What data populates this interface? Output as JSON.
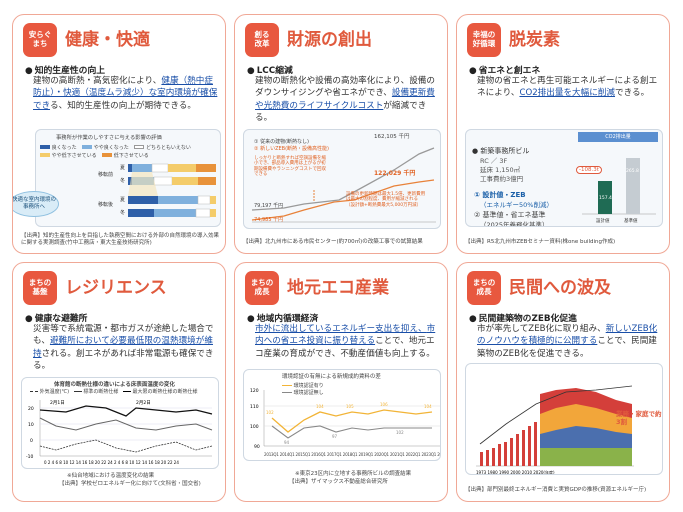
{
  "c1": {
    "badge": "安らぐ\nまち",
    "title": "健康・快適",
    "sub": "知的生産性の向上",
    "body_a": "建物の高断熱・高気密化により、",
    "body_b": "健康（熱中症防止）・快適（温度ムラ減少）な室内環境が確保でき",
    "body_c": "る、知的生産性の向上が期待できる。",
    "chart_title": "事務所が作業のしやすさに与える影響の評価",
    "legend": [
      "良くなった",
      "やや良くなった",
      "どちらともいえない",
      "やや低下させている",
      "低下させている"
    ],
    "rows": [
      "夏",
      "冬",
      "夏",
      "冬"
    ],
    "groups": [
      "移転前",
      "移転後"
    ],
    "callout": "快適な室内環境の事務所へ",
    "source": "【出典】知的生産性向上を目指した執務空間における外部の自然環境の導入効果に関する実測調査(竹中工務店・東大生産技術研究所)"
  },
  "c2": {
    "badge": "創る\n改革",
    "title": "財源の創出",
    "sub": "LCC縮減",
    "body_a": "建物の断熱化や設備の高効率化により、",
    "body_b": "設備のダウンサイジングや省エネができ、",
    "body_c": "設備更新費や光熱費のライフサイクルコスト",
    "body_d": "が縮減できる。",
    "legend1": "① 従来の建物(断熱なし)",
    "legend2": "② 新しいZEB(断熱・設備高性能)",
    "v1": "162,105 千円",
    "v2": "122,029 千円",
    "v3": "79,197 千円",
    "v4": "74,985 千円",
    "note1": "しっかりと断熱すれば空調設備を縮小でき、部品導入費用は上がるが初期設備費やランニングコストで回収できる",
    "note2": "設備の更新時期は最大1.5倍、更新費用は最大の割程度、費用が縮減される（設計額+断熱費最大5,000万円減）",
    "source": "【出典】北九州市にある市民センター(約700㎡)の改築工事での試算結果"
  },
  "c3": {
    "badge": "幸福の\n好循環",
    "title": "脱炭素",
    "sub": "省エネと創エネ",
    "body_a": "建物の省エネと再生可能エネルギーによる創エネにより、",
    "body_b": "CO2排出量を大幅に削減",
    "body_c": "できる。",
    "info_title": "新築事務所ビル",
    "info_lines": [
      "RC ／ 3F",
      "延床 1,150㎡",
      "工事費約3億円"
    ],
    "opt1": "① 設計値・ZEB",
    "opt1b": "（エネルギー50%削減）",
    "opt2": "② 基準値・省エネ基準",
    "opt2b": "（2025年義務化基準）",
    "chart_title": "CO2排出量",
    "bar_labels": [
      "設計値",
      "基準値"
    ],
    "bar_values": [
      157.4,
      265.8
    ],
    "diff": "-108.3t",
    "source": "【出典】R5北九州市ZEBセミナー資料(株one building作成)"
  },
  "c4": {
    "badge": "まちの\n基盤",
    "title": "レジリエンス",
    "sub": "健康な避難所",
    "body_a": "災害等で系統電源・都市ガスが途絶した場合でも、",
    "body_b": "避難所において必要最低限の温熱環境が維持",
    "body_c": "される。創エネがあれば非常電源も確保できる。",
    "chart_title": "体育館の断熱仕様の違いによる床表面温度の変化",
    "legend": [
      "外気温度(℃)",
      "標準の断熱仕様",
      "最大限の断熱仕様の断熱仕様"
    ],
    "note1": "※仙台地域における温度変化の結果",
    "source": "【出典】学校ゼロエネルギー化に向けて(文科省・国交省)"
  },
  "c5": {
    "badge": "まちの\n成長",
    "title": "地元エコ産業",
    "sub": "地域内循環経済",
    "body_a": "市外に流出しているエネルギー支出を抑え、",
    "body_b": "市内への省エネ投資に振り替える",
    "body_c": "ことで、地元エコ産業の育成ができ、不動産価値も向上する。",
    "chart_title": "環境認証の有無による新規成約賃料の差",
    "legend": [
      "環境認証有り",
      "環境認証無し"
    ],
    "x": [
      "2013Q1",
      "2014Q1",
      "2015Q1",
      "2016Q1",
      "2017Q1",
      "2018Q1",
      "2019Q1",
      "2020Q1",
      "2021Q1",
      "2022Q1",
      "2023Q1",
      "2024Q1"
    ],
    "note1": "※東京23区内に立地する事務所ビルの調査結果",
    "source": "【出典】ザイマックス不動産総合研究所"
  },
  "c6": {
    "badge": "まちの\n成長",
    "title": "民間への波及",
    "sub": "民間建築物のZEB化促進",
    "body_a": "市が率先してZEB化に取り組み、",
    "body_b": "新しいZEB化のノウハウを積極的に公開する",
    "body_c": "ことで、民間建築物のZEB化を促進できる。",
    "note": "業務・家庭で約3割",
    "source": "【出典】部門別最終エネルギー消費と実質GDPの推移(資源エネルギー庁)"
  }
}
